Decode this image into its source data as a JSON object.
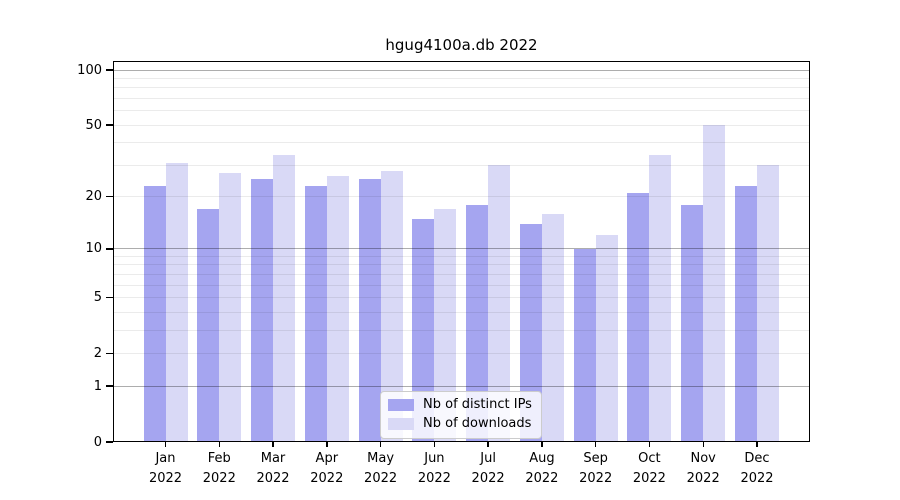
{
  "figure": {
    "title": "hgug4100a.db 2022",
    "background_color": "#ffffff",
    "axis_color": "#000000"
  },
  "chart_data": {
    "type": "bar",
    "title": "hgug4100a.db 2022",
    "categories": [
      "Jan",
      "Feb",
      "Mar",
      "Apr",
      "May",
      "Jun",
      "Jul",
      "Aug",
      "Sep",
      "Oct",
      "Nov",
      "Dec"
    ],
    "year": "2022",
    "series": [
      {
        "name": "Nb of distinct IPs",
        "color": "#a5a5f0",
        "values": [
          23,
          17,
          25,
          23,
          25,
          15,
          18,
          14,
          10,
          21,
          18,
          23
        ]
      },
      {
        "name": "Nb of downloads",
        "color": "#d9d9f6",
        "values": [
          31,
          27,
          34,
          26,
          28,
          17,
          30,
          16,
          12,
          34,
          50,
          30
        ]
      }
    ],
    "yscale": "log10(value+1)",
    "ylim": [
      0,
      112
    ],
    "ytick_values": [
      0,
      1,
      2,
      5,
      10,
      20,
      50,
      100
    ],
    "ytick_labels": [
      "0",
      "1",
      "2",
      "5",
      "10",
      "20",
      "50",
      "100"
    ],
    "minor_grid_values": [
      2,
      3,
      4,
      5,
      6,
      7,
      8,
      9,
      20,
      30,
      40,
      50,
      60,
      70,
      80,
      90
    ],
    "major_grid_values": [
      1,
      10,
      100
    ],
    "grid": "horizontal",
    "minor_grid_color": "rgba(0,0,0,0.08)",
    "major_grid_color": "rgba(0,0,0,0.32)",
    "legend_position": "bottom-center"
  }
}
